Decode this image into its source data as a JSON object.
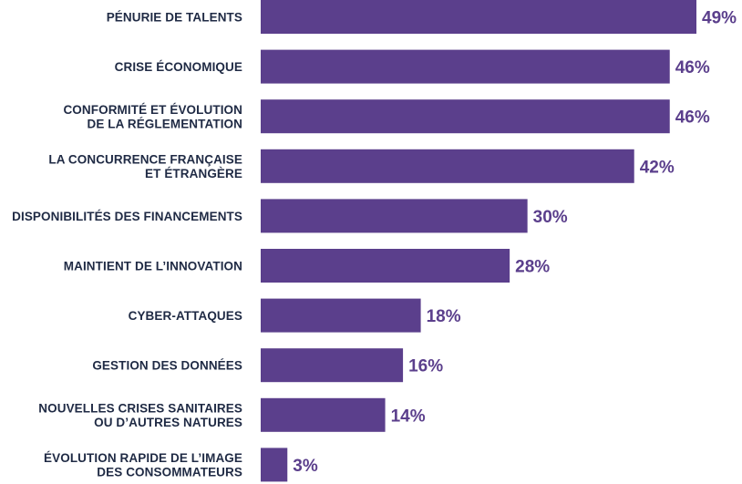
{
  "chart_data": {
    "type": "bar",
    "orientation": "horizontal",
    "bar_color": "#5b3f8c",
    "label_color": "#1f2a44",
    "value_color": "#5b3f8c",
    "grid": false,
    "legend": "none",
    "xlim": [
      0,
      50
    ],
    "value_suffix": "%",
    "categories": [
      [
        "PÉNURIE DE TALENTS"
      ],
      [
        "CRISE ÉCONOMIQUE"
      ],
      [
        "CONFORMITÉ ET ÉVOLUTION",
        "DE LA RÉGLEMENTATION"
      ],
      [
        "LA CONCURRENCE FRANÇAISE",
        "ET ÉTRANGÈRE"
      ],
      [
        "DISPONIBILITÉS DES FINANCEMENTS"
      ],
      [
        "MAINTIENT DE L’INNOVATION"
      ],
      [
        "CYBER-ATTAQUES"
      ],
      [
        "GESTION DES DONNÉES"
      ],
      [
        "NOUVELLES CRISES SANITAIRES",
        "OU D’AUTRES NATURES"
      ],
      [
        "ÉVOLUTION RAPIDE DE L’IMAGE",
        "DES CONSOMMATEURS"
      ]
    ],
    "values": [
      49,
      46,
      46,
      42,
      30,
      28,
      18,
      16,
      14,
      3
    ],
    "value_labels": [
      "49%",
      "46%",
      "46%",
      "42%",
      "30%",
      "28%",
      "18%",
      "16%",
      "14%",
      "3%"
    ]
  }
}
